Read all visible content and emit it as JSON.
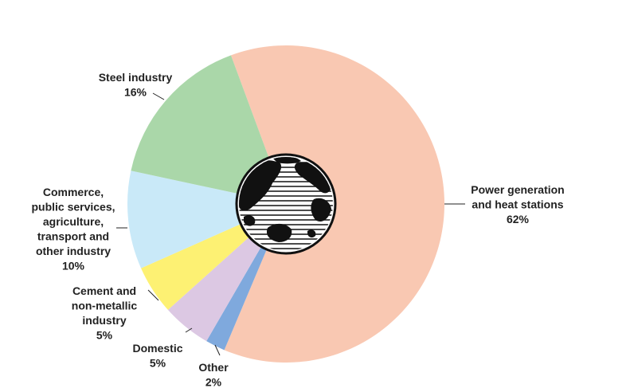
{
  "chart_data": {
    "type": "pie",
    "donut": true,
    "center_graphic": "globe-icon",
    "slices": [
      {
        "label_lines": [
          "Power generation",
          "and heat stations",
          "62%"
        ],
        "value": 62,
        "color": "#F9C8B2"
      },
      {
        "label_lines": [
          "Other",
          "2%"
        ],
        "value": 2,
        "color": "#7FA9DD"
      },
      {
        "label_lines": [
          "Domestic",
          "5%"
        ],
        "value": 5,
        "color": "#DCC8E3"
      },
      {
        "label_lines": [
          "Cement and",
          "non-metallic",
          "industry",
          "5%"
        ],
        "value": 5,
        "color": "#FDF173"
      },
      {
        "label_lines": [
          "Commerce,",
          "public services,",
          "agriculture,",
          "transport and",
          "other industry",
          "10%"
        ],
        "value": 10,
        "color": "#C9E9F8"
      },
      {
        "label_lines": [
          "Steel industry",
          "16%"
        ],
        "value": 16,
        "color": "#AAD7A9"
      }
    ]
  }
}
